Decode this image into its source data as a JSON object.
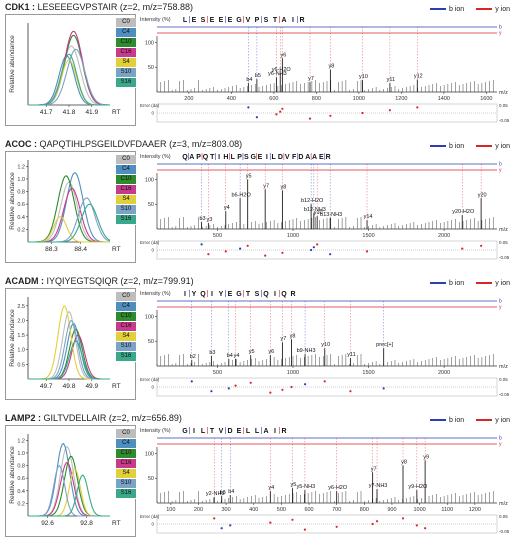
{
  "legend_ions": {
    "b": "b ion",
    "y": "y ion",
    "b_color": "#2b3fb5",
    "y_color": "#d62728"
  },
  "xic_series_names": [
    "C0",
    "C4",
    "C10",
    "C16",
    "S4",
    "S10",
    "S16"
  ],
  "xic_colors": [
    "#bdbdbd",
    "#4f8fc0",
    "#2e8b2e",
    "#c83a8c",
    "#e0d03a",
    "#7aa3c8",
    "#3aa88a"
  ],
  "axis_text": {
    "xic_ylabel": "Relative abundance",
    "xic_xlabel": "RT",
    "spec_ylabel": "Intensity (%)",
    "spec_xlabel": "m/z",
    "err_ylabel": "Error (da)",
    "err_pos": "0.05",
    "err_neg": "-0.05",
    "err_zero": "0"
  },
  "chart_data": [
    {
      "type": "line",
      "panel": "CDK1",
      "protein": "CDK1 :",
      "peptide": "LESEEEGVPSTAIR",
      "charge_text": "(z=2, m/z=758.88)",
      "xic": {
        "x_ticks": [
          "41.7",
          "41.8",
          "41.9"
        ],
        "xlim": [
          41.62,
          41.98
        ],
        "y_ticks": [],
        "ylim": [
          0,
          1.0
        ],
        "series": [
          {
            "name": "C0",
            "peak": 41.81,
            "height": 0.72,
            "width": 0.07
          },
          {
            "name": "C4",
            "peak": 41.79,
            "height": 0.6,
            "width": 0.06
          },
          {
            "name": "C10",
            "peak": 41.82,
            "height": 0.85,
            "width": 0.07
          },
          {
            "name": "C16",
            "peak": 41.82,
            "height": 0.9,
            "width": 0.07
          },
          {
            "name": "S4",
            "peak": 41.8,
            "height": 0.55,
            "width": 0.06
          },
          {
            "name": "S10",
            "peak": 41.83,
            "height": 0.68,
            "width": 0.07
          },
          {
            "name": "S16",
            "peak": 41.8,
            "height": 0.62,
            "width": 0.06
          }
        ]
      },
      "spectrum": {
        "sequence": [
          "L",
          "E",
          "S",
          "E",
          "E",
          "E",
          "G",
          "V",
          "P",
          "S",
          "T",
          "A",
          "I",
          "R"
        ],
        "x_ticks": [
          200,
          400,
          600,
          800,
          1000,
          1200,
          1400,
          1600
        ],
        "xlim": [
          50,
          1650
        ],
        "y_ticks": [
          50,
          100
        ],
        "peaks": [
          {
            "mz": 480,
            "int": 18,
            "label": "b4",
            "ion": "b"
          },
          {
            "mz": 520,
            "int": 26,
            "label": "b5",
            "ion": "b"
          },
          {
            "mz": 612,
            "int": 30,
            "label": "y6-NH3",
            "ion": "y"
          },
          {
            "mz": 630,
            "int": 38,
            "label": "y6-H2O",
            "ion": "y"
          },
          {
            "mz": 640,
            "int": 68,
            "label": "y6",
            "ion": "y"
          },
          {
            "mz": 770,
            "int": 20,
            "label": "y7",
            "ion": "y"
          },
          {
            "mz": 866,
            "int": 45,
            "label": "y8",
            "ion": "y"
          },
          {
            "mz": 1017,
            "int": 24,
            "label": "y10",
            "ion": "y"
          },
          {
            "mz": 1146,
            "int": 18,
            "label": "y11",
            "ion": "y"
          },
          {
            "mz": 1275,
            "int": 25,
            "label": "y12",
            "ion": "y"
          }
        ]
      }
    },
    {
      "type": "line",
      "panel": "ACOC",
      "protein": "ACOC :",
      "peptide": "QAPQTIHLPSGEILDVFDAAER",
      "charge_text": "(z=3, m/z=803.08)",
      "xic": {
        "x_ticks": [
          "88.3",
          "88.4"
        ],
        "xlim": [
          88.22,
          88.5
        ],
        "y_ticks": [
          "0.2",
          "0.4",
          "0.6",
          "0.8",
          "1.0",
          "1.2"
        ],
        "ylim": [
          0,
          1.3
        ],
        "series": [
          {
            "name": "C0",
            "peak": 88.36,
            "height": 0.95,
            "width": 0.05
          },
          {
            "name": "C4",
            "peak": 88.38,
            "height": 1.1,
            "width": 0.05
          },
          {
            "name": "C10",
            "peak": 88.35,
            "height": 1.05,
            "width": 0.05
          },
          {
            "name": "C16",
            "peak": 88.37,
            "height": 0.85,
            "width": 0.05
          },
          {
            "name": "S4",
            "peak": 88.33,
            "height": 0.4,
            "width": 0.04
          },
          {
            "name": "S10",
            "peak": 88.42,
            "height": 0.7,
            "width": 0.05
          },
          {
            "name": "S16",
            "peak": 88.43,
            "height": 0.6,
            "width": 0.05
          }
        ]
      },
      "spectrum": {
        "sequence": [
          "Q",
          "A",
          "P",
          "Q",
          "T",
          "I",
          "H",
          "L",
          "P",
          "S",
          "G",
          "E",
          "I",
          "L",
          "D",
          "V",
          "F",
          "D",
          "A",
          "A",
          "E",
          "R"
        ],
        "x_ticks": [
          500,
          1000,
          1500,
          2000
        ],
        "xlim": [
          100,
          2350
        ],
        "y_ticks": [
          50,
          100
        ],
        "peaks": [
          {
            "mz": 395,
            "int": 14,
            "label": "b3",
            "ion": "b"
          },
          {
            "mz": 440,
            "int": 12,
            "label": "y3",
            "ion": "y"
          },
          {
            "mz": 555,
            "int": 36,
            "label": "y4",
            "ion": "y"
          },
          {
            "mz": 650,
            "int": 62,
            "label": "b6-H2O",
            "ion": "b"
          },
          {
            "mz": 700,
            "int": 100,
            "label": "y5",
            "ion": "y"
          },
          {
            "mz": 816,
            "int": 80,
            "label": "y7",
            "ion": "y"
          },
          {
            "mz": 930,
            "int": 78,
            "label": "y8",
            "ion": "y"
          },
          {
            "mz": 1120,
            "int": 50,
            "label": "b12-H2O",
            "ion": "b"
          },
          {
            "mz": 1138,
            "int": 32,
            "label": "b12-NH3",
            "ion": "b"
          },
          {
            "mz": 1160,
            "int": 26,
            "label": "y10",
            "ion": "y"
          },
          {
            "mz": 1246,
            "int": 22,
            "label": "b13-NH3",
            "ion": "b"
          },
          {
            "mz": 1490,
            "int": 18,
            "label": "y14",
            "ion": "y"
          },
          {
            "mz": 2120,
            "int": 28,
            "label": "y20-H2O",
            "ion": "y"
          },
          {
            "mz": 2245,
            "int": 62,
            "label": "y20",
            "ion": "y"
          }
        ]
      }
    },
    {
      "type": "line",
      "panel": "ACADM",
      "protein": "ACADM :",
      "peptide": "IYQIYEGTSQIQR",
      "charge_text": "(z=2, m/z=799.91)",
      "xic": {
        "x_ticks": [
          "49.7",
          "49.8",
          "49.9"
        ],
        "xlim": [
          49.62,
          49.98
        ],
        "y_ticks": [
          "0.5",
          "1.0",
          "1.5",
          "2.0",
          "2.5"
        ],
        "ylim": [
          0,
          2.8
        ],
        "series": [
          {
            "name": "C0",
            "peak": 49.8,
            "height": 2.3,
            "width": 0.05
          },
          {
            "name": "C4",
            "peak": 49.82,
            "height": 1.9,
            "width": 0.05
          },
          {
            "name": "C10",
            "peak": 49.83,
            "height": 1.7,
            "width": 0.05
          },
          {
            "name": "C16",
            "peak": 49.84,
            "height": 1.5,
            "width": 0.05
          },
          {
            "name": "S4",
            "peak": 49.78,
            "height": 2.5,
            "width": 0.05
          },
          {
            "name": "S10",
            "peak": 49.81,
            "height": 2.0,
            "width": 0.05
          },
          {
            "name": "S16",
            "peak": 49.83,
            "height": 1.3,
            "width": 0.05
          }
        ]
      },
      "spectrum": {
        "sequence": [
          "I",
          "Y",
          "Q",
          "I",
          "Y",
          "E",
          "G",
          "T",
          "S",
          "Q",
          "I",
          "Q",
          "R"
        ],
        "x_ticks": [
          500,
          1000,
          1500,
          2000
        ],
        "xlim": [
          100,
          2350
        ],
        "y_ticks": [
          50,
          100
        ],
        "peaks": [
          {
            "mz": 330,
            "int": 12,
            "label": "b2",
            "ion": "b"
          },
          {
            "mz": 460,
            "int": 20,
            "label": "b3",
            "ion": "b"
          },
          {
            "mz": 575,
            "int": 14,
            "label": "b4",
            "ion": "b"
          },
          {
            "mz": 620,
            "int": 14,
            "label": "y4",
            "ion": "y"
          },
          {
            "mz": 720,
            "int": 22,
            "label": "y5",
            "ion": "y"
          },
          {
            "mz": 850,
            "int": 22,
            "label": "y6",
            "ion": "y"
          },
          {
            "mz": 930,
            "int": 48,
            "label": "y7",
            "ion": "y"
          },
          {
            "mz": 990,
            "int": 54,
            "label": "y8",
            "ion": "y"
          },
          {
            "mz": 1080,
            "int": 24,
            "label": "b9-NH3",
            "ion": "b"
          },
          {
            "mz": 1210,
            "int": 36,
            "label": "y10",
            "ion": "y"
          },
          {
            "mz": 1380,
            "int": 16,
            "label": "y11",
            "ion": "y"
          },
          {
            "mz": 1600,
            "int": 36,
            "label": "prec[+]",
            "ion": "b"
          }
        ]
      }
    },
    {
      "type": "line",
      "panel": "LAMP2",
      "protein": "LAMP2 :",
      "peptide": "GILTVDELLAIR",
      "charge_text": "(z=2, m/z=656.89)",
      "xic": {
        "x_ticks": [
          "92.6",
          "92.8"
        ],
        "xlim": [
          92.5,
          92.92
        ],
        "y_ticks": [
          "0.2",
          "0.4",
          "0.6",
          "0.8",
          "1.0",
          "1.2"
        ],
        "ylim": [
          0,
          1.3
        ],
        "series": [
          {
            "name": "C0",
            "peak": 92.7,
            "height": 1.1,
            "width": 0.06
          },
          {
            "name": "C4",
            "peak": 92.68,
            "height": 1.15,
            "width": 0.06
          },
          {
            "name": "C10",
            "peak": 92.72,
            "height": 0.95,
            "width": 0.06
          },
          {
            "name": "C16",
            "peak": 92.7,
            "height": 0.85,
            "width": 0.06
          },
          {
            "name": "S4",
            "peak": 92.74,
            "height": 0.75,
            "width": 0.05
          },
          {
            "name": "S10",
            "peak": 92.66,
            "height": 0.8,
            "width": 0.05
          },
          {
            "name": "S16",
            "peak": 92.78,
            "height": 0.65,
            "width": 0.05
          }
        ]
      },
      "spectrum": {
        "sequence": [
          "G",
          "I",
          "L",
          "T",
          "V",
          "D",
          "E",
          "L",
          "L",
          "A",
          "I",
          "R"
        ],
        "x_ticks": [
          100,
          200,
          300,
          400,
          500,
          600,
          700,
          800,
          900,
          1000,
          1100,
          1200
        ],
        "xlim": [
          50,
          1280
        ],
        "y_ticks": [
          50,
          100
        ],
        "peaks": [
          {
            "mz": 257,
            "int": 12,
            "label": "y2-NH3",
            "ion": "y"
          },
          {
            "mz": 284,
            "int": 14,
            "label": "b3",
            "ion": "b"
          },
          {
            "mz": 315,
            "int": 16,
            "label": "b4",
            "ion": "b"
          },
          {
            "mz": 460,
            "int": 24,
            "label": "y4",
            "ion": "y"
          },
          {
            "mz": 540,
            "int": 30,
            "label": "y5",
            "ion": "y"
          },
          {
            "mz": 585,
            "int": 26,
            "label": "y5-NH3",
            "ion": "y"
          },
          {
            "mz": 700,
            "int": 24,
            "label": "y6-H2O",
            "ion": "y"
          },
          {
            "mz": 830,
            "int": 62,
            "label": "y7",
            "ion": "y"
          },
          {
            "mz": 846,
            "int": 28,
            "label": "y7-NH3",
            "ion": "y"
          },
          {
            "mz": 940,
            "int": 76,
            "label": "y8",
            "ion": "y"
          },
          {
            "mz": 1020,
            "int": 86,
            "label": "y9",
            "ion": "y"
          },
          {
            "mz": 990,
            "int": 26,
            "label": "y9-H2O",
            "ion": "y"
          }
        ]
      }
    }
  ]
}
